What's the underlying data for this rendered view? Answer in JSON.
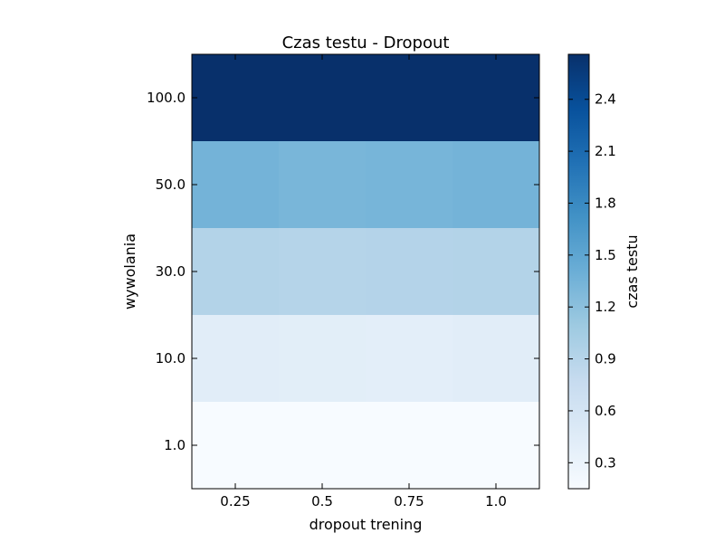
{
  "chart_data": {
    "type": "heatmap",
    "title": "Czas testu - Dropout",
    "xlabel": "dropout trening",
    "ylabel": "wywolania",
    "x_categories": [
      "0.25",
      "0.5",
      "0.75",
      "1.0"
    ],
    "y_categories": [
      "100.0",
      "50.0",
      "30.0",
      "10.0",
      "1.0"
    ],
    "values": [
      [
        2.66,
        2.66,
        2.66,
        2.66
      ],
      [
        1.35,
        1.32,
        1.33,
        1.35
      ],
      [
        0.93,
        0.91,
        0.92,
        0.93
      ],
      [
        0.42,
        0.41,
        0.4,
        0.42
      ],
      [
        0.15,
        0.15,
        0.15,
        0.15
      ]
    ],
    "colormap": "Blues",
    "colorbar": {
      "label": "czas testu",
      "range": [
        0.15,
        2.66
      ],
      "ticks": [
        "0.3",
        "0.6",
        "0.9",
        "1.2",
        "1.5",
        "1.8",
        "2.1",
        "2.4"
      ]
    },
    "grid": false
  }
}
